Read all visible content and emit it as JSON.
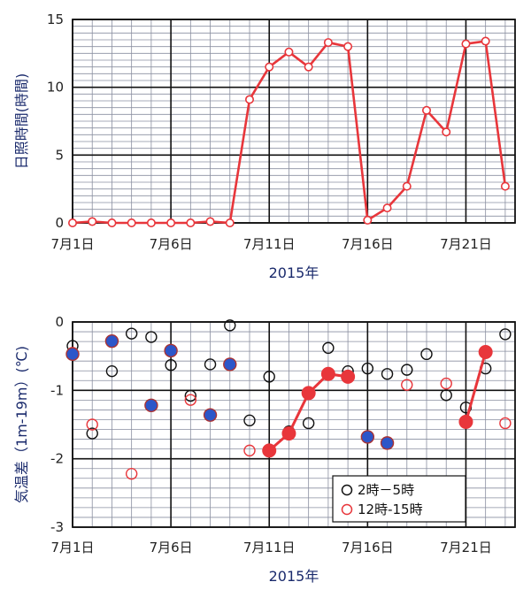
{
  "chart_data": [
    {
      "type": "line",
      "ylabel": "日照時間(時間)",
      "xlabel": "2015年",
      "x_tick_labels": [
        "7月1日",
        "7月6日",
        "7月11日",
        "7月16日",
        "7月21日"
      ],
      "x_tick_days": [
        1,
        6,
        11,
        16,
        21
      ],
      "y_tick_labels": [
        "0",
        "5",
        "10",
        "15"
      ],
      "ylim": [
        0,
        15
      ],
      "xlim": [
        1,
        23.5
      ],
      "grid": true,
      "series": [
        {
          "color": "#e8363b",
          "marker": "open-circle",
          "days": [
            1,
            2,
            3,
            4,
            5,
            6,
            7,
            8,
            9,
            10,
            11,
            12,
            13,
            14,
            15,
            16,
            17,
            18,
            19,
            20,
            21,
            22,
            23
          ],
          "values": [
            0,
            0.1,
            0,
            0,
            0,
            0,
            0,
            0.1,
            0,
            9.1,
            11.5,
            12.6,
            11.5,
            13.3,
            13.0,
            0.2,
            1.1,
            2.7,
            8.3,
            6.7,
            13.2,
            13.4,
            2.7
          ]
        }
      ]
    },
    {
      "type": "scatter",
      "ylabel": "気温差（1m-19m）(℃)",
      "xlabel": "2015年",
      "x_tick_labels": [
        "7月1日",
        "7月6日",
        "7月11日",
        "7月16日",
        "7月21日"
      ],
      "x_tick_days": [
        1,
        6,
        11,
        16,
        21
      ],
      "y_tick_labels": [
        "0",
        "-1",
        "-2",
        "-3"
      ],
      "ylim": [
        -3,
        0
      ],
      "xlim": [
        1,
        23.5
      ],
      "grid": true,
      "legend": {
        "position": "bottom-right",
        "entries": [
          "2時－5時",
          "12時-15時"
        ]
      },
      "series": [
        {
          "name": "2時－5時",
          "color": "#111111",
          "marker": "open-circle",
          "days": [
            1,
            2,
            3,
            4,
            5,
            6,
            7,
            8,
            9,
            10,
            11,
            12,
            13,
            14,
            15,
            16,
            17,
            18,
            19,
            20,
            21,
            22,
            23
          ],
          "values": [
            -0.35,
            -1.63,
            -0.72,
            -0.17,
            -0.22,
            -0.63,
            -1.08,
            -0.62,
            -0.05,
            -1.44,
            -0.8,
            -1.6,
            -1.48,
            -0.38,
            -0.72,
            -0.68,
            -0.76,
            -0.7,
            -0.47,
            -1.07,
            -1.25,
            -0.68,
            -0.18
          ]
        },
        {
          "name": "12時-15時",
          "color": "#e8363b",
          "marker": "open-circle",
          "days": [
            1,
            2,
            4,
            7,
            10,
            18,
            20,
            23
          ],
          "values": [
            -0.45,
            -1.5,
            -2.22,
            -1.14,
            -1.88,
            -0.92,
            -0.9,
            -1.48
          ]
        },
        {
          "name": "blue-filled",
          "color": "#2c56c9",
          "marker": "filled-circle",
          "days": [
            1,
            3,
            5,
            6,
            8,
            9,
            16,
            17
          ],
          "values": [
            -0.47,
            -0.28,
            -1.22,
            -0.42,
            -1.36,
            -0.62,
            -1.68,
            -1.77
          ]
        },
        {
          "name": "red-filled",
          "color": "#e8363b",
          "marker": "filled-circle-line",
          "days": [
            11,
            12,
            13,
            14,
            15
          ],
          "values": [
            -1.88,
            -1.63,
            -1.04,
            -0.76,
            -0.8
          ]
        },
        {
          "name": "red-filled-2",
          "color": "#e8363b",
          "marker": "filled-circle-line",
          "days": [
            21,
            22
          ],
          "values": [
            -1.46,
            -0.44
          ]
        }
      ]
    }
  ]
}
